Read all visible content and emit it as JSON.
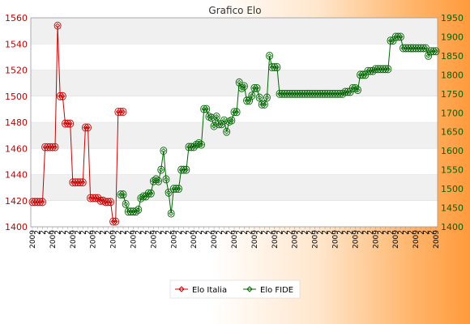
{
  "chart_data": {
    "type": "line",
    "title": "Grafico Elo",
    "xlabel": "",
    "ylabel": "",
    "grid": true,
    "legend_position": "bottom",
    "y_left": {
      "lim": [
        1400,
        1560
      ],
      "ticks": [
        1400,
        1420,
        1440,
        1460,
        1480,
        1500,
        1520,
        1540,
        1560
      ]
    },
    "y_right": {
      "lim": [
        1400,
        1950
      ],
      "ticks": [
        1400,
        1450,
        1500,
        1550,
        1600,
        1650,
        1700,
        1750,
        1800,
        1850,
        1900,
        1950
      ]
    },
    "x_tick_labels": [
      "2009",
      "2",
      "2",
      "2"
    ],
    "colors": {
      "italia": "#cc0000",
      "fide": "#006600",
      "grid_band": "#f0f0f0",
      "frame": "#999999"
    },
    "series": [
      {
        "name": "Elo Italia",
        "axis": "left",
        "x": [
          0,
          1,
          2,
          3,
          4,
          5,
          6,
          7,
          8,
          9,
          10,
          11,
          12,
          13,
          14,
          15,
          16,
          17,
          18,
          19,
          20,
          21,
          22,
          23,
          24,
          25,
          26,
          27,
          28,
          29,
          30,
          31,
          32,
          33,
          34,
          35,
          36
        ],
        "values": [
          1419,
          1419,
          1419,
          1419,
          1419,
          1461,
          1461,
          1461,
          1461,
          1461,
          1554,
          1500,
          1500,
          1479,
          1479,
          1479,
          1434,
          1434,
          1434,
          1434,
          1434,
          1476,
          1476,
          1422,
          1422,
          1422,
          1422,
          1420,
          1420,
          1419,
          1419,
          1419,
          1404,
          1404,
          1488,
          1488,
          1488
        ]
      },
      {
        "name": "Elo FIDE",
        "axis": "right",
        "x": [
          35,
          36,
          37,
          38,
          39,
          40,
          41,
          42,
          43,
          44,
          45,
          46,
          47,
          48,
          49,
          50,
          51,
          52,
          53,
          54,
          55,
          56,
          57,
          58,
          59,
          60,
          61,
          62,
          63,
          64,
          65,
          66,
          67,
          68,
          69,
          70,
          71,
          72,
          73,
          74,
          75,
          76,
          77,
          78,
          79,
          80,
          81,
          82,
          83,
          84,
          85,
          86,
          87,
          88,
          89,
          90,
          91,
          92,
          93,
          94,
          95,
          96,
          97,
          98,
          99,
          100,
          101,
          102,
          103,
          104,
          105,
          106,
          107,
          108,
          109,
          110,
          111,
          112,
          113,
          114,
          115,
          116,
          117,
          118,
          119,
          120,
          121,
          122,
          123,
          124,
          125,
          126,
          127,
          128,
          129,
          130,
          131,
          132,
          133,
          134,
          135,
          136,
          137,
          138,
          139,
          140,
          141,
          142,
          143,
          144,
          145,
          146,
          147,
          148,
          149,
          150,
          151,
          152,
          153,
          154,
          155,
          156,
          157,
          158,
          159,
          160
        ],
        "values": [
          1485,
          1485,
          1460,
          1440,
          1440,
          1440,
          1440,
          1445,
          1475,
          1480,
          1480,
          1488,
          1488,
          1520,
          1525,
          1520,
          1550,
          1600,
          1525,
          1490,
          1435,
          1500,
          1500,
          1500,
          1550,
          1550,
          1550,
          1610,
          1610,
          1610,
          1616,
          1620,
          1616,
          1710,
          1710,
          1690,
          1687,
          1665,
          1690,
          1670,
          1670,
          1680,
          1650,
          1677,
          1680,
          1702,
          1702,
          1780,
          1765,
          1770,
          1732,
          1732,
          1745,
          1765,
          1765,
          1740,
          1722,
          1722,
          1740,
          1850,
          1820,
          1820,
          1820,
          1750,
          1750,
          1750,
          1750,
          1750,
          1750,
          1750,
          1750,
          1750,
          1750,
          1750,
          1750,
          1750,
          1750,
          1750,
          1750,
          1750,
          1750,
          1750,
          1750,
          1750,
          1750,
          1750,
          1750,
          1750,
          1750,
          1755,
          1755,
          1755,
          1765,
          1765,
          1760,
          1800,
          1800,
          1800,
          1810,
          1810,
          1810,
          1815,
          1815,
          1815,
          1815,
          1815,
          1815,
          1890,
          1890,
          1900,
          1900,
          1900,
          1870,
          1870,
          1870,
          1870,
          1870,
          1870,
          1870,
          1870,
          1870,
          1870,
          1850,
          1862,
          1862,
          1862
        ]
      }
    ]
  }
}
